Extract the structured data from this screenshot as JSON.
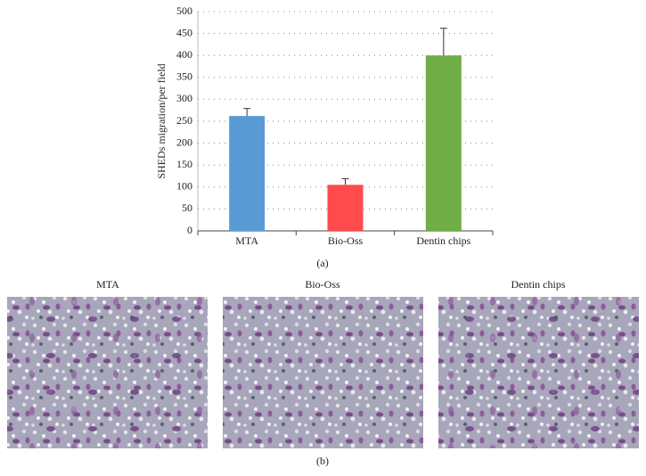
{
  "chart_data": {
    "type": "bar",
    "y_label": "SHEDs migration/per field",
    "categories": [
      "MTA",
      "Bio-Oss",
      "Dentin chips"
    ],
    "values": [
      262,
      105,
      400
    ],
    "errors": [
      17,
      14,
      62
    ],
    "colors": [
      "#5b9bd5",
      "#ff4b4b",
      "#70ad47"
    ],
    "ylim": [
      0,
      500
    ],
    "yticks": [
      0,
      50,
      100,
      150,
      200,
      250,
      300,
      350,
      400,
      450,
      500
    ],
    "grid": true,
    "panel_label": "(a)"
  },
  "micrographs": {
    "titles": [
      "MTA",
      "Bio-Oss",
      "Dentin chips"
    ],
    "panel_label": "(b)"
  }
}
